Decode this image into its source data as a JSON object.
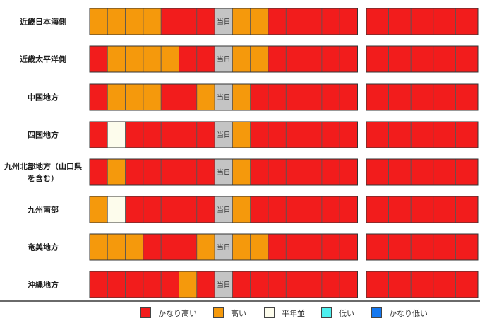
{
  "chart_data": {
    "type": "heatmap",
    "today_label": "当日",
    "today_index": 7,
    "colors": {
      "かなり高い": "#f21c1c",
      "高い": "#f5990c",
      "平年並": "#fdfcec",
      "低い": "#4ef0f0",
      "かなり低い": "#1478f0",
      "当日": "#c4c4c4"
    },
    "rows": [
      {
        "region": "近畿日本海側",
        "values": [
          "高い",
          "高い",
          "高い",
          "高い",
          "かなり高い",
          "かなり高い",
          "かなり高い",
          "当日",
          "高い",
          "高い",
          "かなり高い",
          "かなり高い",
          "かなり高い",
          "かなり高い",
          "かなり高い",
          "かなり高い",
          "かなり高い",
          "かなり高い",
          "かなり高い",
          "かなり高い"
        ]
      },
      {
        "region": "近畿太平洋側",
        "values": [
          "かなり高い",
          "高い",
          "高い",
          "高い",
          "高い",
          "かなり高い",
          "かなり高い",
          "当日",
          "高い",
          "高い",
          "かなり高い",
          "かなり高い",
          "かなり高い",
          "かなり高い",
          "かなり高い",
          "かなり高い",
          "かなり高い",
          "かなり高い",
          "かなり高い",
          "かなり高い"
        ]
      },
      {
        "region": "中国地方",
        "values": [
          "かなり高い",
          "高い",
          "高い",
          "高い",
          "かなり高い",
          "かなり高い",
          "高い",
          "当日",
          "高い",
          "かなり高い",
          "かなり高い",
          "かなり高い",
          "かなり高い",
          "かなり高い",
          "かなり高い",
          "かなり高い",
          "かなり高い",
          "かなり高い",
          "かなり高い",
          "かなり高い"
        ]
      },
      {
        "region": "四国地方",
        "values": [
          "かなり高い",
          "平年並",
          "かなり高い",
          "かなり高い",
          "かなり高い",
          "かなり高い",
          "かなり高い",
          "当日",
          "高い",
          "かなり高い",
          "かなり高い",
          "かなり高い",
          "かなり高い",
          "かなり高い",
          "かなり高い",
          "かなり高い",
          "かなり高い",
          "かなり高い",
          "かなり高い",
          "かなり高い"
        ]
      },
      {
        "region": "九州北部地方（山口県を含む）",
        "values": [
          "かなり高い",
          "高い",
          "かなり高い",
          "かなり高い",
          "かなり高い",
          "かなり高い",
          "かなり高い",
          "当日",
          "高い",
          "かなり高い",
          "かなり高い",
          "かなり高い",
          "かなり高い",
          "かなり高い",
          "かなり高い",
          "かなり高い",
          "かなり高い",
          "かなり高い",
          "かなり高い",
          "かなり高い"
        ]
      },
      {
        "region": "九州南部",
        "values": [
          "高い",
          "平年並",
          "かなり高い",
          "かなり高い",
          "かなり高い",
          "かなり高い",
          "かなり高い",
          "当日",
          "高い",
          "かなり高い",
          "かなり高い",
          "かなり高い",
          "かなり高い",
          "かなり高い",
          "かなり高い",
          "かなり高い",
          "かなり高い",
          "かなり高い",
          "かなり高い",
          "かなり高い"
        ]
      },
      {
        "region": "奄美地方",
        "values": [
          "高い",
          "高い",
          "高い",
          "かなり高い",
          "かなり高い",
          "かなり高い",
          "高い",
          "当日",
          "高い",
          "高い",
          "かなり高い",
          "かなり高い",
          "かなり高い",
          "かなり高い",
          "かなり高い",
          "かなり高い",
          "かなり高い",
          "かなり高い",
          "かなり高い",
          "かなり高い"
        ]
      },
      {
        "region": "沖縄地方",
        "values": [
          "かなり高い",
          "かなり高い",
          "かなり高い",
          "かなり高い",
          "かなり高い",
          "高い",
          "かなり高い",
          "当日",
          "かなり高い",
          "かなり高い",
          "かなり高い",
          "かなり高い",
          "かなり高い",
          "かなり高い",
          "かなり高い",
          "かなり高い",
          "かなり高い",
          "かなり高い",
          "かなり高い",
          "かなり高い"
        ]
      }
    ],
    "legend": [
      "かなり高い",
      "高い",
      "平年並",
      "低い",
      "かなり低い"
    ]
  }
}
